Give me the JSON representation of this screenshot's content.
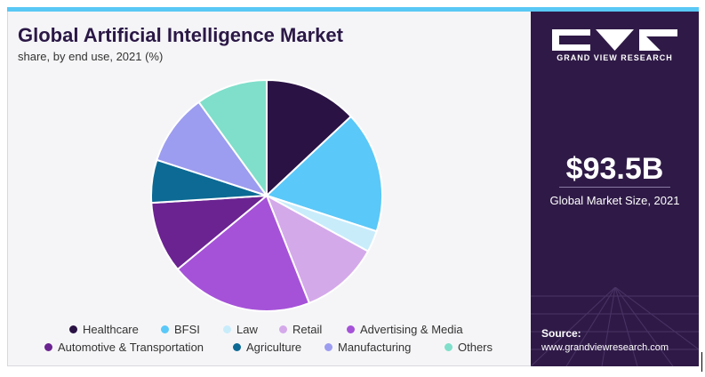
{
  "header": {
    "title": "Global Artificial Intelligence Market",
    "subtitle": "share, by end use, 2021 (%)"
  },
  "brand": {
    "name": "GRAND VIEW RESEARCH"
  },
  "market": {
    "size": "$93.5B",
    "label": "Global Market Size, 2021"
  },
  "source": {
    "label": "Source:",
    "url": "www.grandviewresearch.com"
  },
  "colors": {
    "title": "#2b1846",
    "panel": "#2f1a47",
    "accent_bar": "#59c8f5"
  },
  "chart_data": {
    "type": "pie",
    "title": "Global Artificial Intelligence Market",
    "subtitle": "share, by end use, 2021 (%)",
    "legend_position": "bottom",
    "slices": [
      {
        "label": "Healthcare",
        "value": 13.0,
        "color": "#2a1244"
      },
      {
        "label": "BFSI",
        "value": 17.0,
        "color": "#5ac8f8"
      },
      {
        "label": "Law",
        "value": 3.0,
        "color": "#c9ecfb"
      },
      {
        "label": "Retail",
        "value": 11.0,
        "color": "#d4a9ea"
      },
      {
        "label": "Advertising & Media",
        "value": 20.0,
        "color": "#a552d8"
      },
      {
        "label": "Automotive & Transportation",
        "value": 10.0,
        "color": "#6a2390"
      },
      {
        "label": "Agriculture",
        "value": 6.0,
        "color": "#0c6a94"
      },
      {
        "label": "Manufacturing",
        "value": 10.0,
        "color": "#9c9cf0"
      },
      {
        "label": "Others",
        "value": 10.0,
        "color": "#7fdfca"
      }
    ]
  }
}
